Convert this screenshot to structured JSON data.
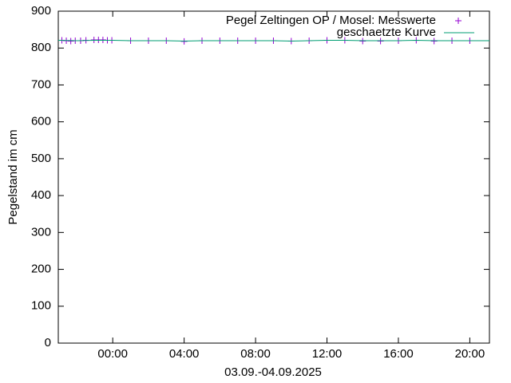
{
  "chart_data": {
    "type": "line",
    "xlabel": "03.09.-04.09.2025",
    "ylabel": "Pegelstand im cm",
    "xlim": [
      -3.05,
      21.1
    ],
    "ylim": [
      0,
      900
    ],
    "xticks": [
      {
        "value": 0,
        "label": "00:00"
      },
      {
        "value": 4,
        "label": "04:00"
      },
      {
        "value": 8,
        "label": "08:00"
      },
      {
        "value": 12,
        "label": "12:00"
      },
      {
        "value": 16,
        "label": "16:00"
      },
      {
        "value": 20,
        "label": "20:00"
      }
    ],
    "yticks": [
      0,
      100,
      200,
      300,
      400,
      500,
      600,
      700,
      800,
      900
    ],
    "legend": "top-right",
    "series": [
      {
        "name": "Pegel Zeltingen OP / Mosel: Messwerte",
        "color": "#9400d3",
        "style": "points",
        "x": [
          -2.85,
          -2.6,
          -2.35,
          -2.1,
          -1.8,
          -1.5,
          -1.05,
          -0.8,
          -0.55,
          -0.3,
          -0.05,
          1,
          2,
          3,
          4,
          5,
          6,
          7,
          8,
          9,
          10,
          11,
          12,
          13,
          14,
          15,
          16,
          17,
          18,
          19,
          20
        ],
        "values": [
          821,
          820,
          819,
          820,
          820,
          821,
          822,
          822,
          822,
          821,
          821,
          820,
          820,
          820,
          818,
          820,
          820,
          820,
          820,
          820,
          819,
          820,
          821,
          821,
          819,
          819,
          820,
          821,
          819,
          820,
          820
        ]
      },
      {
        "name": "geschaetzte Kurve",
        "color": "#009e73",
        "style": "line",
        "x": [
          -3.05,
          -2,
          -1,
          0,
          1,
          2,
          3,
          4,
          5,
          6,
          7,
          8,
          9,
          10,
          11,
          12,
          13,
          14,
          15,
          16,
          17,
          18,
          19,
          20,
          21.1
        ],
        "values": [
          821,
          820,
          821,
          821,
          820,
          820,
          820,
          819,
          820,
          820,
          820,
          820,
          820,
          819,
          820,
          821,
          821,
          820,
          820,
          820,
          821,
          820,
          820,
          820,
          820
        ]
      }
    ]
  }
}
